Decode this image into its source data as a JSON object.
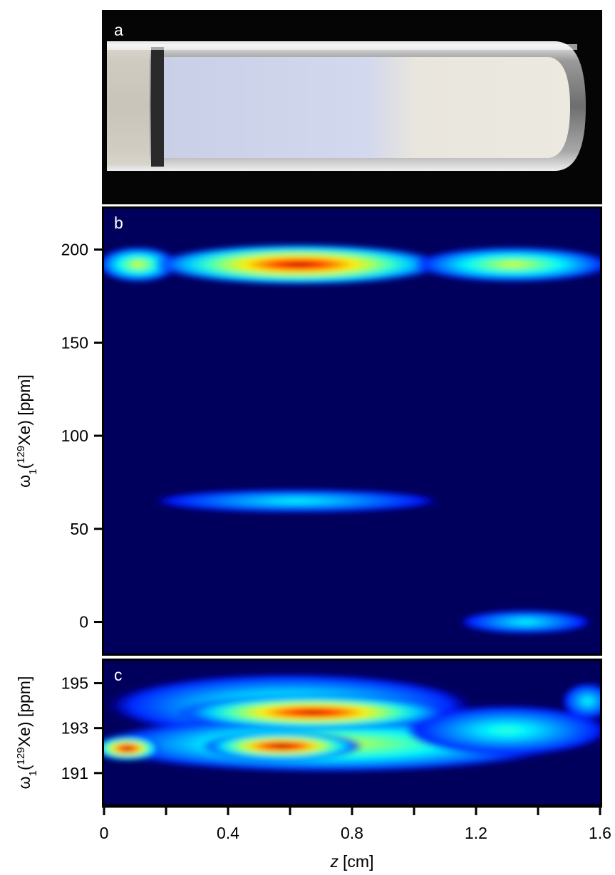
{
  "chart_data": [
    {
      "type": "image",
      "panel_label": "a"
    },
    {
      "type": "heatmap",
      "panel_label": "b",
      "colormap": "jet",
      "background": "#00005c",
      "ylabel": [
        "ω",
        "1",
        "(",
        "129",
        "Xe) [ppm]"
      ],
      "xlim": [
        0,
        1.6
      ],
      "ylim": [
        -17,
        222
      ],
      "yticks": [
        0,
        50,
        100,
        150,
        200
      ],
      "bands": [
        {
          "z": [
            0.0,
            0.22
          ],
          "shift": 192,
          "width": 6,
          "intensity": 0.55
        },
        {
          "z": [
            0.18,
            1.08
          ],
          "shift": 192,
          "width": 7,
          "intensity": 0.95
        },
        {
          "z": [
            1.02,
            1.62
          ],
          "shift": 192,
          "width": 6,
          "intensity": 0.55
        },
        {
          "z": [
            0.17,
            1.07
          ],
          "shift": 65,
          "width": 4,
          "intensity": 0.3
        },
        {
          "z": [
            1.16,
            1.56
          ],
          "shift": 0,
          "width": 4,
          "intensity": 0.3
        }
      ]
    },
    {
      "type": "heatmap",
      "panel_label": "c",
      "colormap": "jet",
      "background": "#00005c",
      "ylabel": [
        "ω",
        "1",
        "(",
        "129",
        "Xe) [ppm]"
      ],
      "xlabel": [
        "z",
        "[cm]"
      ],
      "xlim": [
        0,
        1.6
      ],
      "ylim": [
        189.6,
        196
      ],
      "yticks": [
        191,
        193,
        195
      ],
      "xticks": [
        0,
        0.4,
        0.8,
        1.2,
        1.6
      ],
      "minor_xticks": [
        0.2,
        0.6,
        1.0,
        1.4
      ],
      "bands": [
        {
          "z": [
            0.05,
            1.15
          ],
          "shift": 194,
          "width": 0.9,
          "intensity": 0.4
        },
        {
          "z": [
            0.0,
            1.45
          ],
          "shift": 192.3,
          "width": 0.8,
          "intensity": 0.55
        },
        {
          "z": [
            1.0,
            1.6
          ],
          "shift": 192.9,
          "width": 0.7,
          "intensity": 0.35
        },
        {
          "z": [
            0.25,
            1.1
          ],
          "shift": 193.7,
          "width": 0.5,
          "intensity": 0.95
        },
        {
          "z": [
            -0.02,
            0.17
          ],
          "shift": 192.1,
          "width": 0.35,
          "intensity": 1.0
        },
        {
          "z": [
            0.33,
            0.82
          ],
          "shift": 192.2,
          "width": 0.4,
          "intensity": 1.0
        },
        {
          "z": [
            1.5,
            1.62
          ],
          "shift": 194.2,
          "width": 0.5,
          "intensity": 0.3
        }
      ]
    }
  ]
}
